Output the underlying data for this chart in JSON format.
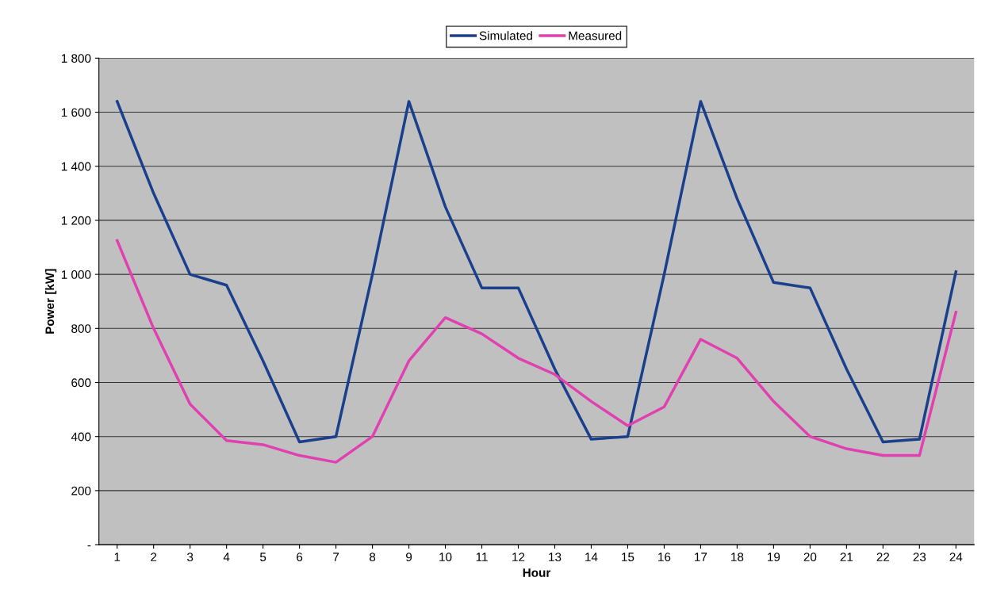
{
  "chart_data": {
    "type": "line",
    "xlabel": "Hour",
    "ylabel": "Power [kW]",
    "categories": [
      "1",
      "2",
      "3",
      "4",
      "5",
      "6",
      "7",
      "8",
      "9",
      "10",
      "11",
      "12",
      "13",
      "14",
      "15",
      "16",
      "17",
      "18",
      "19",
      "20",
      "21",
      "22",
      "23",
      "24"
    ],
    "series": [
      {
        "name": "Simulated",
        "color": "#1a3f8c",
        "values": [
          1640,
          1300,
          1000,
          960,
          680,
          380,
          400,
          1000,
          1640,
          1250,
          950,
          950,
          650,
          390,
          400,
          1000,
          1640,
          1280,
          970,
          950,
          650,
          380,
          390,
          1010
        ]
      },
      {
        "name": "Measured",
        "color": "#e040b0",
        "values": [
          1125,
          800,
          520,
          385,
          370,
          330,
          305,
          400,
          680,
          840,
          780,
          690,
          630,
          530,
          440,
          510,
          760,
          690,
          530,
          400,
          355,
          330,
          330,
          860
        ]
      }
    ],
    "ylim": [
      0,
      1800
    ],
    "yticks": [
      {
        "value": 0,
        "label": "-"
      },
      200,
      400,
      600,
      800,
      {
        "value": 1000,
        "label": "1 000"
      },
      {
        "value": 1200,
        "label": "1 200"
      },
      {
        "value": 1400,
        "label": "1 400"
      },
      {
        "value": 1600,
        "label": "1 600"
      },
      {
        "value": 1800,
        "label": "1 800"
      }
    ],
    "grid": "y",
    "legend": "top",
    "marker": "none",
    "line_style": "solid"
  }
}
